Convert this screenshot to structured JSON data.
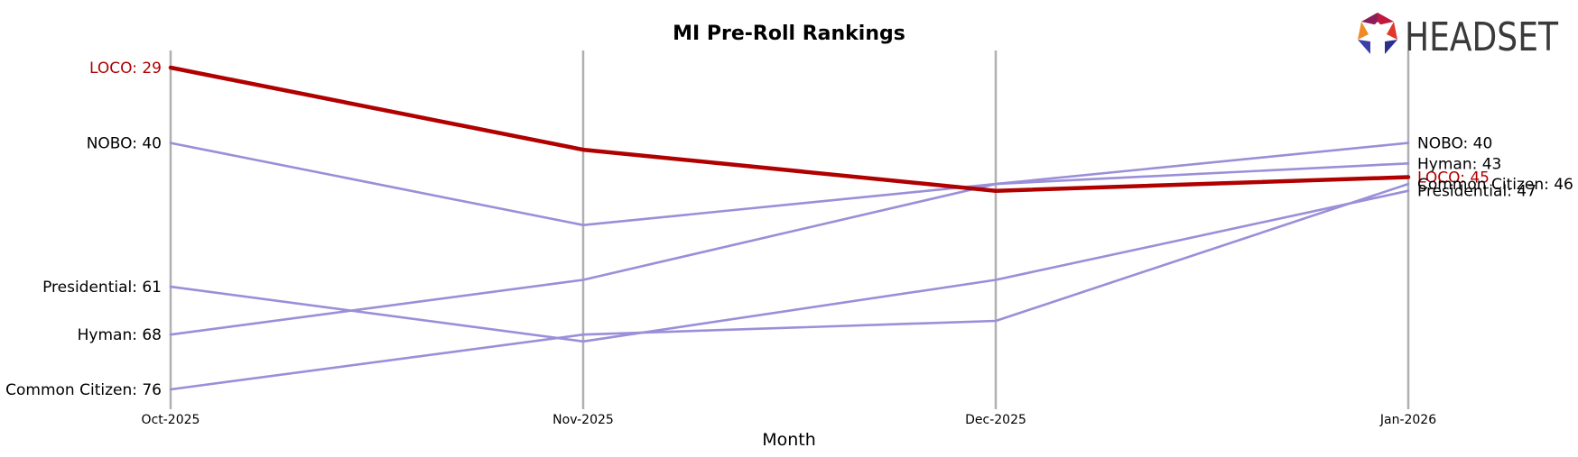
{
  "chart_data": {
    "type": "line",
    "title": "MI Pre-Roll Rankings",
    "xlabel": "Month",
    "ylabel": "",
    "categories": [
      "Oct-2025",
      "Nov-2025",
      "Dec-2025",
      "Jan-2026"
    ],
    "y_inverted": true,
    "ylim": [
      27,
      78
    ],
    "grid": "vertical lines at each month",
    "series": [
      {
        "name": "LOCO",
        "values": [
          29,
          41,
          47,
          45
        ],
        "color": "#b00000",
        "highlight": true
      },
      {
        "name": "NOBO",
        "values": [
          40,
          52,
          46,
          40
        ],
        "color": "#9a8fd8"
      },
      {
        "name": "Presidential",
        "values": [
          61,
          69,
          60,
          47
        ],
        "color": "#9a8fd8"
      },
      {
        "name": "Hyman",
        "values": [
          68,
          60,
          46,
          43
        ],
        "color": "#9a8fd8"
      },
      {
        "name": "Common Citizen",
        "values": [
          76,
          68,
          66,
          46
        ],
        "color": "#9a8fd8"
      }
    ],
    "start_labels": [
      {
        "text": "LOCO: 29",
        "series": "LOCO"
      },
      {
        "text": "NOBO: 40",
        "series": "NOBO"
      },
      {
        "text": "Presidential: 61",
        "series": "Presidential"
      },
      {
        "text": "Hyman: 68",
        "series": "Hyman"
      },
      {
        "text": "Common Citizen: 76",
        "series": "Common Citizen"
      }
    ],
    "end_labels": [
      {
        "text": "NOBO: 40",
        "series": "NOBO"
      },
      {
        "text": "Hyman: 43",
        "series": "Hyman"
      },
      {
        "text": "LOCO: 45",
        "series": "LOCO"
      },
      {
        "text": "Common Citizen: 46",
        "series": "Common Citizen"
      },
      {
        "text": "Presidential: 47",
        "series": "Presidential"
      }
    ]
  },
  "logo": {
    "text": "HEADSET",
    "colors": [
      "#e0392b",
      "#f08a24",
      "#8a1c5a",
      "#3b3fa8",
      "#c0183e"
    ]
  },
  "colors": {
    "highlight": "#b00000",
    "other": "#9a8fd8",
    "grid": "#b0b0b0"
  }
}
